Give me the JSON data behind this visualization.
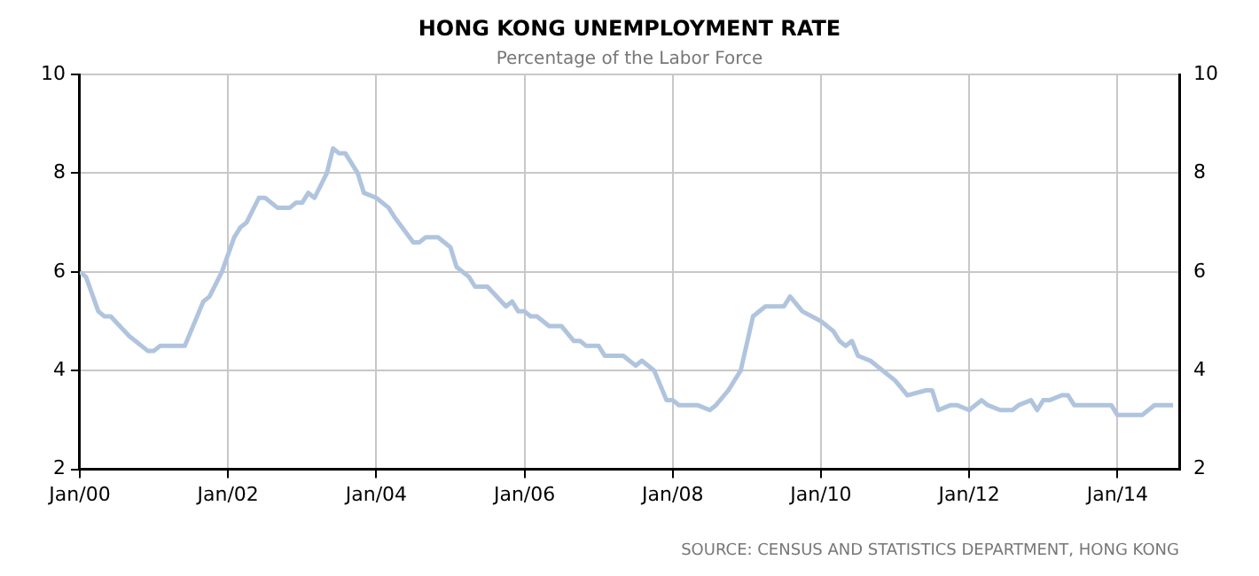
{
  "chart_data": {
    "type": "line",
    "title": "HONG KONG UNEMPLOYMENT RATE",
    "subtitle": "Percentage of the Labor Force",
    "annotations": [
      "SOURCE: CENSUS AND STATISTICS DEPARTMENT, HONG KONG"
    ],
    "x": [
      "2000-01",
      "2000-02",
      "2000-04",
      "2000-05",
      "2000-06",
      "2000-09",
      "2000-12",
      "2001-01",
      "2001-02",
      "2001-06",
      "2001-09",
      "2001-10",
      "2001-12",
      "2002-02",
      "2002-03",
      "2002-04",
      "2002-06",
      "2002-07",
      "2002-09",
      "2002-11",
      "2002-12",
      "2003-01",
      "2003-02",
      "2003-03",
      "2003-05",
      "2003-06",
      "2003-07",
      "2003-08",
      "2003-10",
      "2003-11",
      "2004-01",
      "2004-03",
      "2004-04",
      "2004-07",
      "2004-08",
      "2004-09",
      "2004-11",
      "2005-01",
      "2005-02",
      "2005-04",
      "2005-05",
      "2005-07",
      "2005-10",
      "2005-11",
      "2005-12",
      "2006-01",
      "2006-02",
      "2006-03",
      "2006-05",
      "2006-07",
      "2006-09",
      "2006-10",
      "2006-11",
      "2007-01",
      "2007-02",
      "2007-05",
      "2007-07",
      "2007-08",
      "2007-10",
      "2007-12",
      "2008-01",
      "2008-02",
      "2008-05",
      "2008-07",
      "2008-08",
      "2008-10",
      "2008-12",
      "2009-02",
      "2009-04",
      "2009-07",
      "2009-08",
      "2009-10",
      "2010-01",
      "2010-03",
      "2010-04",
      "2010-05",
      "2010-06",
      "2010-07",
      "2010-09",
      "2010-11",
      "2011-01",
      "2011-03",
      "2011-06",
      "2011-07",
      "2011-08",
      "2011-10",
      "2011-11",
      "2012-01",
      "2012-03",
      "2012-04",
      "2012-06",
      "2012-08",
      "2012-09",
      "2012-11",
      "2012-12",
      "2013-01",
      "2013-02",
      "2013-04",
      "2013-05",
      "2013-06",
      "2013-12",
      "2014-01",
      "2014-05",
      "2014-07",
      "2014-10"
    ],
    "series": [
      {
        "color": "#b0c4de",
        "values": [
          6.0,
          5.9,
          5.2,
          5.1,
          5.1,
          4.7,
          4.4,
          4.4,
          4.5,
          4.5,
          5.4,
          5.5,
          6.0,
          6.7,
          6.9,
          7.0,
          7.5,
          7.5,
          7.3,
          7.3,
          7.4,
          7.4,
          7.6,
          7.5,
          8.0,
          8.5,
          8.4,
          8.4,
          8.0,
          7.6,
          7.5,
          7.3,
          7.1,
          6.6,
          6.6,
          6.7,
          6.7,
          6.5,
          6.1,
          5.9,
          5.7,
          5.7,
          5.3,
          5.4,
          5.2,
          5.2,
          5.1,
          5.1,
          4.9,
          4.9,
          4.6,
          4.6,
          4.5,
          4.5,
          4.3,
          4.3,
          4.1,
          4.2,
          4.0,
          3.4,
          3.4,
          3.3,
          3.3,
          3.2,
          3.3,
          3.6,
          4.0,
          5.1,
          5.3,
          5.3,
          5.5,
          5.2,
          5.0,
          4.8,
          4.6,
          4.5,
          4.6,
          4.3,
          4.2,
          4.0,
          3.8,
          3.5,
          3.6,
          3.6,
          3.2,
          3.3,
          3.3,
          3.2,
          3.4,
          3.3,
          3.2,
          3.2,
          3.3,
          3.4,
          3.2,
          3.4,
          3.4,
          3.5,
          3.5,
          3.3,
          3.3,
          3.1,
          3.1,
          3.3,
          3.3
        ]
      }
    ],
    "xlim": [
      "2000-01",
      "2014-11"
    ],
    "xticks": [
      {
        "value": "2000-01",
        "label": "Jan/00"
      },
      {
        "value": "2002-01",
        "label": "Jan/02"
      },
      {
        "value": "2004-01",
        "label": "Jan/04"
      },
      {
        "value": "2006-01",
        "label": "Jan/06"
      },
      {
        "value": "2008-01",
        "label": "Jan/08"
      },
      {
        "value": "2010-01",
        "label": "Jan/10"
      },
      {
        "value": "2012-01",
        "label": "Jan/12"
      },
      {
        "value": "2014-01",
        "label": "Jan/14"
      }
    ],
    "ylim": [
      2,
      10
    ],
    "yticks": [
      2,
      4,
      6,
      8,
      10
    ],
    "y2lim": [
      2,
      10
    ],
    "y2ticks": [
      2,
      4,
      6,
      8,
      10
    ],
    "grid": true,
    "legend": false,
    "marker": "none",
    "line_style": "solid"
  }
}
